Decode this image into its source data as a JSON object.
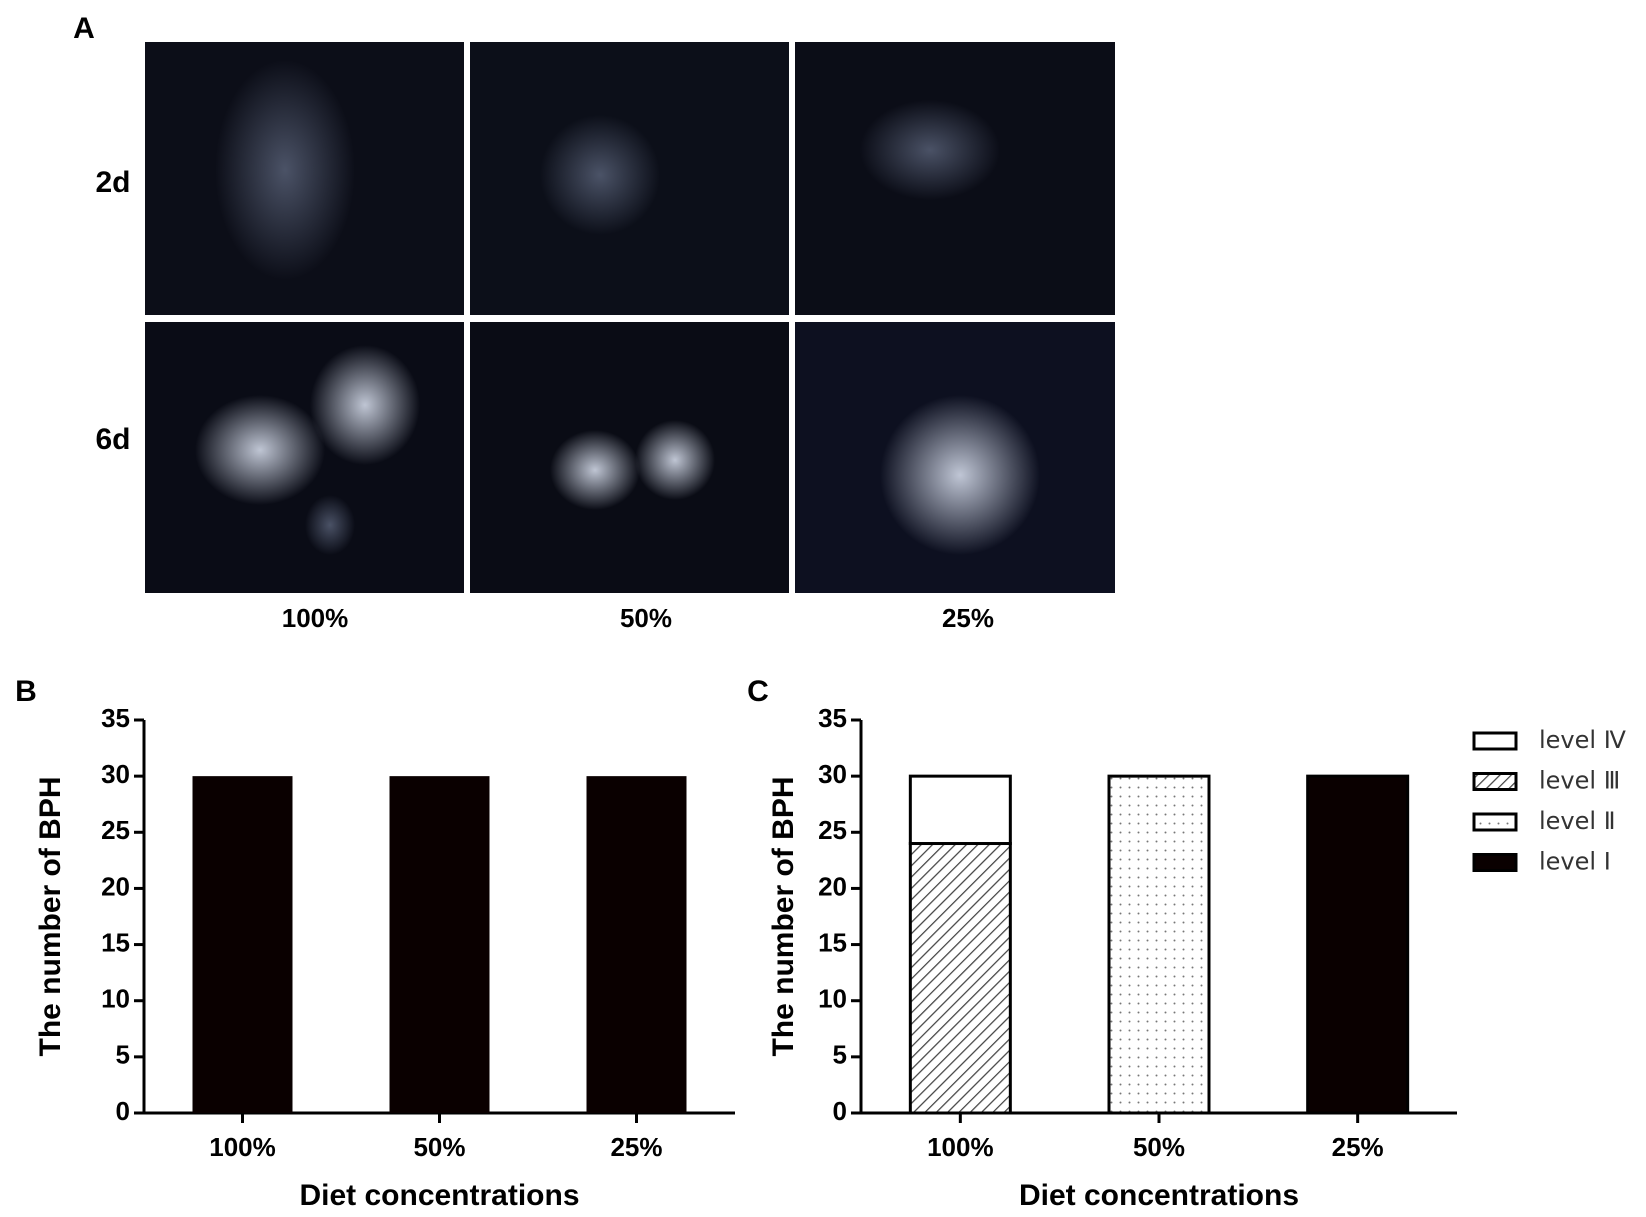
{
  "panel_a": {
    "label": "A",
    "rows": [
      "2d",
      "6d"
    ],
    "columns": [
      "100%",
      "50%",
      "25%"
    ]
  },
  "chart_data": [
    {
      "type": "bar",
      "panel": "B",
      "categories": [
        "100%",
        "50%",
        "25%"
      ],
      "values": [
        30,
        30,
        30
      ],
      "color": "#0a0000",
      "ylim": [
        0,
        35
      ],
      "yticks": [
        0,
        5,
        10,
        15,
        20,
        25,
        30,
        35
      ],
      "ylabel": "The number of BPH",
      "xlabel": "Diet concentrations"
    },
    {
      "type": "stacked_bar",
      "panel": "C",
      "categories": [
        "100%",
        "50%",
        "25%"
      ],
      "series": [
        {
          "name": "level Ⅰ",
          "color": "#0a0000",
          "pattern": "solid",
          "values": [
            0,
            0,
            30
          ]
        },
        {
          "name": "level Ⅱ",
          "color": "#ffffff",
          "pattern": "dots",
          "values": [
            0,
            30,
            0
          ]
        },
        {
          "name": "level Ⅲ",
          "color": "#ffffff",
          "pattern": "hatch",
          "values": [
            24,
            0,
            0
          ]
        },
        {
          "name": "level Ⅳ",
          "color": "#ffffff",
          "pattern": "solid",
          "values": [
            6,
            0,
            0
          ]
        }
      ],
      "ylim": [
        0,
        35
      ],
      "yticks": [
        0,
        5,
        10,
        15,
        20,
        25,
        30,
        35
      ],
      "ylabel": "The number of BPH",
      "xlabel": "Diet concentrations",
      "legend": "right"
    }
  ]
}
